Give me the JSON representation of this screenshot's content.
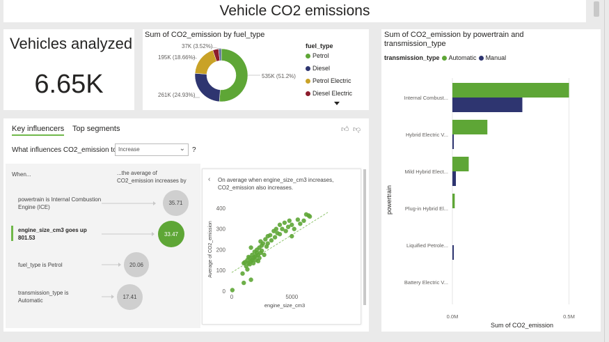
{
  "report": {
    "title": "Vehicle CO2 emissions"
  },
  "kpi": {
    "title": "Vehicles analyzed",
    "value": "6.65K"
  },
  "donut": {
    "title": "Sum of CO2_emission by fuel_type",
    "legend_title": "fuel_type",
    "slice_labels": [
      "535K (51.2%)",
      "261K (24.93%)",
      "195K (18.66%)",
      "37K (3.52%)"
    ],
    "legend": [
      "Petrol",
      "Diesel",
      "Petrol Electric",
      "Diesel Electric"
    ]
  },
  "bar": {
    "title": "Sum of CO2_emission by powertrain and transmission_type",
    "legend_title": "transmission_type",
    "legend": [
      "Automatic",
      "Manual"
    ]
  },
  "key_influencers": {
    "tabs": [
      "Key influencers",
      "Top segments"
    ],
    "question": "What influences CO2_emission to",
    "dropdown_value": "Increase",
    "question_mark": "?",
    "header_when": "When...",
    "header_avg": "...the average of CO2_emission increases by",
    "influencers": [
      {
        "text": "powertrain is Internal Combustion Engine (ICE)",
        "value": "35.71"
      },
      {
        "text": "engine_size_cm3 goes up 801.53",
        "value": "33.47"
      },
      {
        "text": "fuel_type is Petrol",
        "value": "20.06"
      },
      {
        "text": "transmission_type is Automatic",
        "value": "17.41"
      }
    ],
    "detail_text": "On average when engine_size_cm3 increases, CO2_emission also increases."
  },
  "colors": {
    "green": "#5ea636",
    "navy": "#2e3570",
    "gold": "#c9a227",
    "maroon": "#8c1c2c",
    "grey_bubble": "#cfcfcf"
  },
  "chart_data": [
    {
      "type": "pie",
      "title": "Sum of CO2_emission by fuel_type",
      "categories": [
        "Petrol",
        "Diesel",
        "Petrol Electric",
        "Diesel Electric",
        "Other"
      ],
      "values": [
        51.2,
        24.93,
        18.66,
        3.52,
        1.69
      ],
      "labels": [
        "535K (51.2%)",
        "261K (24.93%)",
        "195K (18.66%)",
        "37K (3.52%)",
        ""
      ],
      "legend_title": "fuel_type",
      "legend_placement": "right"
    },
    {
      "type": "bar",
      "orientation": "horizontal",
      "title": "Sum of CO2_emission by powertrain and transmission_type",
      "categories": [
        "Internal Combust...",
        "Hybrid Electric V...",
        "Mild Hybrid Elect...",
        "Plug-in Hybrid El...",
        "Liquified Petrole...",
        "Battery Electric V..."
      ],
      "series": [
        {
          "name": "Automatic",
          "values": [
            0.5,
            0.15,
            0.07,
            0.01,
            0,
            0
          ]
        },
        {
          "name": "Manual",
          "values": [
            0.3,
            0.005,
            0.015,
            0,
            0.005,
            0
          ]
        }
      ],
      "xlabel": "Sum of CO2_emission",
      "ylabel": "powertrain",
      "xlim": [
        0,
        0.55
      ],
      "xticks": [
        "0.0M",
        "0.5M"
      ],
      "legend_title": "transmission_type",
      "legend_placement": "top-left"
    },
    {
      "type": "scatter",
      "xlabel": "engine_size_cm3",
      "ylabel": "Average of CO2_emission",
      "xlim": [
        0,
        8000
      ],
      "ylim": [
        0,
        420
      ],
      "xticks": [
        "0",
        "5000"
      ],
      "yticks": [
        "0",
        "100",
        "200",
        "300",
        "400"
      ],
      "trendline": [
        [
          0,
          90
        ],
        [
          8000,
          380
        ]
      ],
      "points": [
        [
          50,
          5
        ],
        [
          900,
          85
        ],
        [
          1000,
          135
        ],
        [
          1100,
          140
        ],
        [
          1200,
          120
        ],
        [
          1300,
          150
        ],
        [
          1300,
          105
        ],
        [
          1400,
          135
        ],
        [
          1400,
          165
        ],
        [
          1500,
          130
        ],
        [
          1500,
          160
        ],
        [
          1600,
          145
        ],
        [
          1600,
          55
        ],
        [
          1700,
          150
        ],
        [
          1700,
          175
        ],
        [
          1800,
          160
        ],
        [
          1800,
          135
        ],
        [
          1900,
          165
        ],
        [
          1900,
          190
        ],
        [
          2000,
          170
        ],
        [
          2000,
          150
        ],
        [
          2100,
          185
        ],
        [
          2100,
          200
        ],
        [
          2200,
          175
        ],
        [
          2200,
          145
        ],
        [
          2300,
          160
        ],
        [
          2300,
          210
        ],
        [
          2400,
          185
        ],
        [
          2500,
          220
        ],
        [
          2500,
          195
        ],
        [
          2600,
          230
        ],
        [
          2700,
          175
        ],
        [
          2800,
          250
        ],
        [
          2900,
          215
        ],
        [
          3000,
          265
        ],
        [
          3000,
          230
        ],
        [
          3200,
          270
        ],
        [
          3300,
          245
        ],
        [
          3500,
          290
        ],
        [
          3600,
          260
        ],
        [
          3700,
          300
        ],
        [
          3800,
          280
        ],
        [
          4000,
          320
        ],
        [
          4000,
          275
        ],
        [
          4200,
          300
        ],
        [
          4400,
          330
        ],
        [
          4500,
          290
        ],
        [
          4700,
          310
        ],
        [
          4800,
          340
        ],
        [
          5000,
          265
        ],
        [
          5000,
          320
        ],
        [
          5200,
          300
        ],
        [
          5500,
          345
        ],
        [
          5700,
          325
        ],
        [
          6000,
          340
        ],
        [
          6200,
          370
        ],
        [
          6400,
          365
        ],
        [
          6500,
          360
        ],
        [
          1000,
          40
        ],
        [
          1600,
          210
        ],
        [
          2400,
          240
        ]
      ]
    }
  ]
}
